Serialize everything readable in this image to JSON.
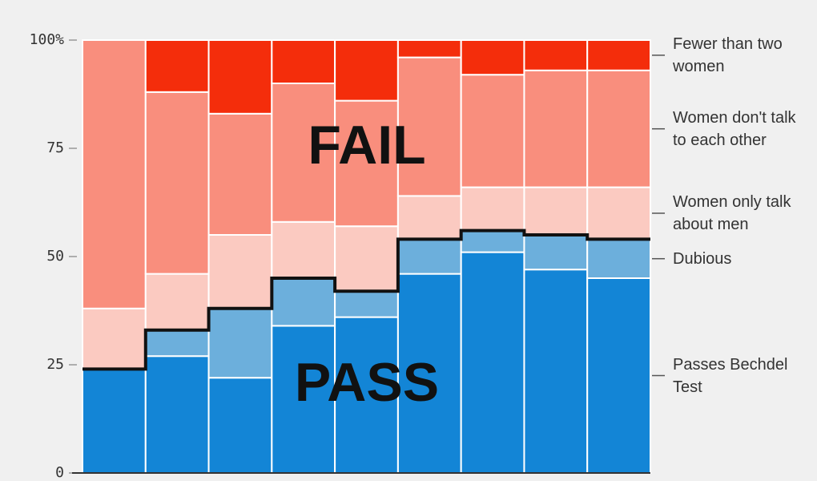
{
  "chart_data": {
    "type": "stacked-bar",
    "annotations": [
      "FAIL",
      "PASS"
    ],
    "categories": [
      null,
      null,
      null,
      null,
      null,
      null,
      null,
      null,
      null
    ],
    "series": [
      {
        "name": "Passes Bechdel Test",
        "color": "#1385d6",
        "values": [
          24,
          27,
          22,
          34,
          36,
          46,
          51,
          47,
          45
        ]
      },
      {
        "name": "Dubious",
        "color": "#6cafdc",
        "values": [
          0,
          6,
          16,
          11,
          6,
          8,
          5,
          8,
          9
        ]
      },
      {
        "name": "Women only talk about men",
        "color": "#fbcac1",
        "values": [
          14,
          13,
          17,
          13,
          15,
          10,
          10,
          11,
          12
        ]
      },
      {
        "name": "Women don't talk to each other",
        "color": "#f98e7d",
        "values": [
          62,
          42,
          28,
          32,
          29,
          32,
          26,
          27,
          27
        ]
      },
      {
        "name": "Fewer than two women",
        "color": "#f42d0b",
        "values": [
          0,
          12,
          17,
          10,
          14,
          4,
          8,
          7,
          7
        ]
      }
    ],
    "ylim": [
      0,
      100
    ],
    "yticks": [
      0,
      25,
      50,
      75,
      {
        "value": 100,
        "label": "100%"
      }
    ]
  }
}
